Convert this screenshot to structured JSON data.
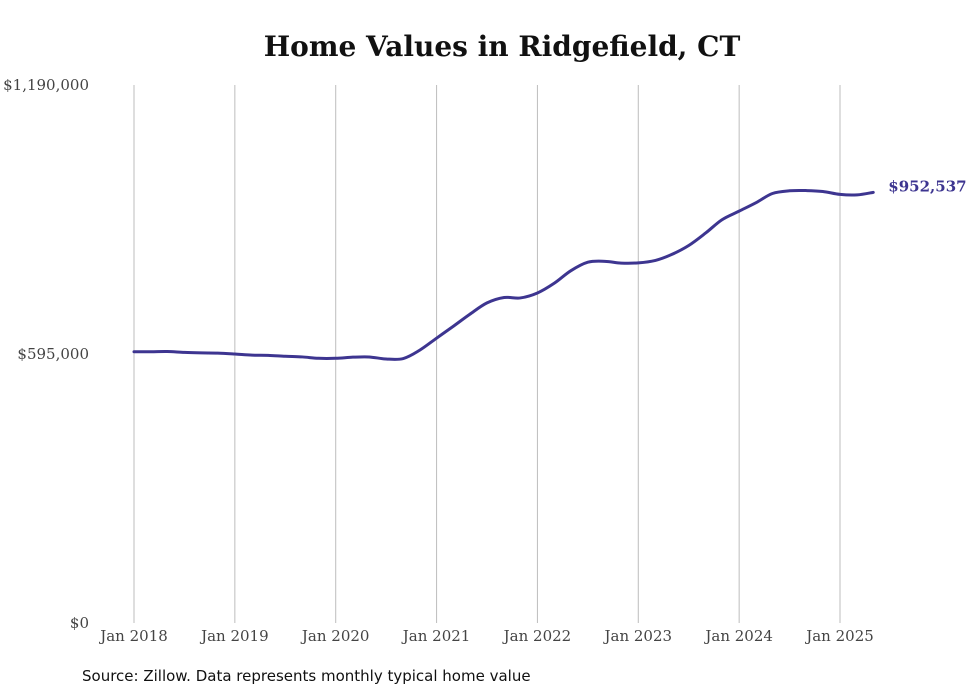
{
  "chart_data": {
    "type": "line",
    "title": "Home Values in Ridgefield, CT",
    "xlabel": "",
    "ylabel": "",
    "ylim": [
      0,
      1190000
    ],
    "y_ticks": [
      0,
      595000,
      1190000
    ],
    "y_tick_labels": [
      "$0",
      "$595,000",
      "$1,190,000"
    ],
    "x_ticks": [
      2018,
      2019,
      2020,
      2021,
      2022,
      2023,
      2024,
      2025
    ],
    "x_tick_labels": [
      "Jan 2018",
      "Jan 2019",
      "Jan 2020",
      "Jan 2021",
      "Jan 2022",
      "Jan 2023",
      "Jan 2024",
      "Jan 2025"
    ],
    "grid": "vertical",
    "line_color": "#3d3590",
    "end_label": "$952,537",
    "series": [
      {
        "name": "",
        "points": [
          [
            2018.0,
            600000
          ],
          [
            2018.17,
            600000
          ],
          [
            2018.33,
            600500
          ],
          [
            2018.5,
            598500
          ],
          [
            2018.67,
            597500
          ],
          [
            2018.83,
            597000
          ],
          [
            2019.0,
            595000
          ],
          [
            2019.17,
            592500
          ],
          [
            2019.33,
            592000
          ],
          [
            2019.5,
            590000
          ],
          [
            2019.67,
            588500
          ],
          [
            2019.83,
            585500
          ],
          [
            2020.0,
            585500
          ],
          [
            2020.17,
            588000
          ],
          [
            2020.33,
            588500
          ],
          [
            2020.5,
            584000
          ],
          [
            2020.67,
            585000
          ],
          [
            2020.83,
            603000
          ],
          [
            2021.0,
            630000
          ],
          [
            2021.17,
            657000
          ],
          [
            2021.33,
            683000
          ],
          [
            2021.5,
            708000
          ],
          [
            2021.67,
            720000
          ],
          [
            2021.83,
            719000
          ],
          [
            2022.0,
            730000
          ],
          [
            2022.17,
            752000
          ],
          [
            2022.33,
            779000
          ],
          [
            2022.5,
            798000
          ],
          [
            2022.67,
            800000
          ],
          [
            2022.83,
            796000
          ],
          [
            2023.0,
            796500
          ],
          [
            2023.17,
            802000
          ],
          [
            2023.33,
            815000
          ],
          [
            2023.5,
            835000
          ],
          [
            2023.67,
            863000
          ],
          [
            2023.83,
            892000
          ],
          [
            2024.0,
            911000
          ],
          [
            2024.17,
            930000
          ],
          [
            2024.33,
            950000
          ],
          [
            2024.5,
            956000
          ],
          [
            2024.67,
            956500
          ],
          [
            2024.83,
            954500
          ],
          [
            2025.0,
            948000
          ],
          [
            2025.17,
            947000
          ],
          [
            2025.33,
            952537
          ]
        ]
      }
    ]
  },
  "source_note": "Source: Zillow. Data represents monthly typical home value"
}
